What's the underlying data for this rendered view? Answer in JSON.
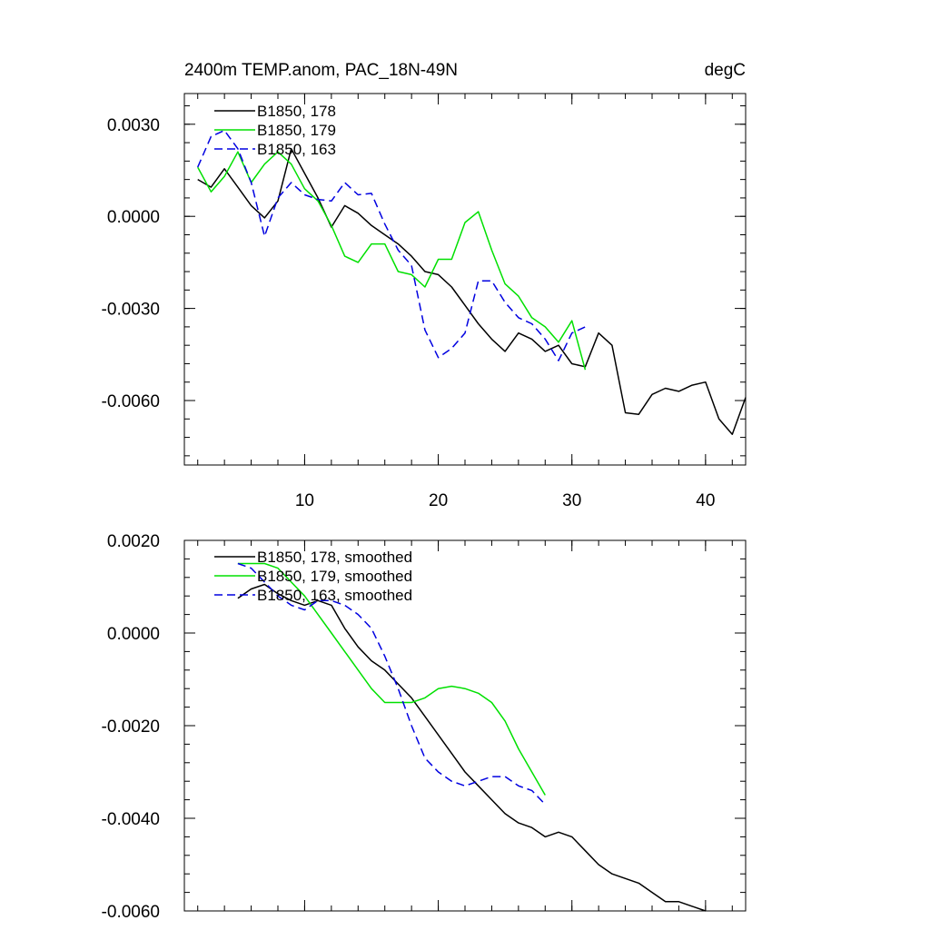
{
  "chart_data": [
    {
      "type": "line",
      "title": "2400m TEMP.anom, PAC_18N-49N",
      "units": "degC",
      "xlim": [
        1,
        43
      ],
      "ylim": [
        -0.0081,
        0.004
      ],
      "x_ticks": [
        10,
        20,
        30,
        40
      ],
      "x_tick_labels": [
        "10",
        "20",
        "30",
        "40"
      ],
      "y_ticks": [
        0.003,
        0.0,
        -0.003,
        -0.006
      ],
      "y_tick_labels": [
        "0.0030",
        "0.0000",
        "-0.0030",
        "-0.0060"
      ],
      "y_minor_step": 0.0006,
      "x_minor_step": 2,
      "legend_position": "top-left",
      "series": [
        {
          "name": "B1850, 178",
          "color": "#000000",
          "dash": "solid",
          "x": [
            2,
            3,
            4,
            5,
            6,
            7,
            8,
            9,
            10,
            11,
            12,
            13,
            14,
            15,
            16,
            17,
            18,
            19,
            20,
            21,
            22,
            23,
            24,
            25,
            26,
            27,
            28,
            29,
            30,
            31,
            32,
            33,
            34,
            35,
            36,
            37,
            38,
            39,
            40,
            41,
            42,
            43
          ],
          "values": [
            0.0012,
            0.00095,
            0.00155,
            0.00095,
            0.00035,
            -5e-05,
            0.0005,
            0.0022,
            0.0014,
            0.0006,
            -0.00035,
            0.00035,
            0.0001,
            -0.0003,
            -0.0006,
            -0.0009,
            -0.0013,
            -0.0018,
            -0.0019,
            -0.0023,
            -0.0029,
            -0.0035,
            -0.004,
            -0.0044,
            -0.0038,
            -0.004,
            -0.0044,
            -0.0042,
            -0.0048,
            -0.0049,
            -0.0038,
            -0.0042,
            -0.0064,
            -0.00645,
            -0.0058,
            -0.0056,
            -0.0057,
            -0.0055,
            -0.0054,
            -0.0066,
            -0.0071,
            -0.0059
          ]
        },
        {
          "name": "B1850, 179",
          "color": "#00e000",
          "dash": "solid",
          "x": [
            2,
            3,
            4,
            5,
            6,
            7,
            8,
            9,
            10,
            11,
            12,
            13,
            14,
            15,
            16,
            17,
            18,
            19,
            20,
            21,
            22,
            23,
            24,
            25,
            26,
            27,
            28,
            29,
            30,
            31
          ],
          "values": [
            0.0016,
            0.0008,
            0.0013,
            0.0021,
            0.0011,
            0.0017,
            0.0021,
            0.0017,
            0.0009,
            0.0005,
            -0.0003,
            -0.0013,
            -0.0015,
            -0.0009,
            -0.0009,
            -0.0018,
            -0.0019,
            -0.0023,
            -0.0014,
            -0.0014,
            -0.0002,
            0.00015,
            -0.0011,
            -0.0022,
            -0.0026,
            -0.0033,
            -0.0036,
            -0.0041,
            -0.0034,
            -0.005
          ]
        },
        {
          "name": "B1850, 163",
          "color": "#0000e0",
          "dash": "dashed",
          "x": [
            2,
            3,
            4,
            5,
            6,
            7,
            8,
            9,
            10,
            11,
            12,
            13,
            14,
            15,
            16,
            17,
            18,
            19,
            20,
            21,
            22,
            23,
            24,
            25,
            26,
            27,
            28,
            29,
            30,
            31
          ],
          "values": [
            0.0016,
            0.0026,
            0.0028,
            0.0022,
            0.0011,
            -0.00065,
            0.0006,
            0.0011,
            0.0007,
            0.00055,
            0.0005,
            0.0011,
            0.0007,
            0.00075,
            -0.00025,
            -0.0011,
            -0.0016,
            -0.0037,
            -0.0046,
            -0.0043,
            -0.0038,
            -0.0021,
            -0.0021,
            -0.0028,
            -0.0033,
            -0.0035,
            -0.004,
            -0.0047,
            -0.0038,
            -0.0036
          ]
        }
      ]
    },
    {
      "type": "line",
      "xlim": [
        1,
        43
      ],
      "ylim": [
        -0.006,
        0.002
      ],
      "x_ticks": [
        10,
        20,
        30,
        40
      ],
      "y_ticks": [
        0.002,
        0.0,
        -0.002,
        -0.004,
        -0.006
      ],
      "y_tick_labels": [
        "0.0020",
        "0.0000",
        "-0.0020",
        "-0.0040",
        "-0.0060"
      ],
      "y_minor_step": 0.0004,
      "x_minor_step": 2,
      "legend_position": "top-left",
      "series": [
        {
          "name": "B1850, 178, smoothed",
          "color": "#000000",
          "dash": "solid",
          "x": [
            5,
            6,
            7,
            8,
            9,
            10,
            11,
            12,
            13,
            14,
            15,
            16,
            17,
            18,
            19,
            20,
            21,
            22,
            23,
            24,
            25,
            26,
            27,
            28,
            29,
            30,
            31,
            32,
            33,
            34,
            35,
            36,
            37,
            38,
            39,
            40
          ],
          "values": [
            0.00075,
            0.00095,
            0.00105,
            0.00085,
            0.0007,
            0.0006,
            0.0007,
            0.0006,
            0.0001,
            -0.0003,
            -0.0006,
            -0.0008,
            -0.0011,
            -0.0014,
            -0.0018,
            -0.0022,
            -0.0026,
            -0.003,
            -0.0033,
            -0.0036,
            -0.0039,
            -0.0041,
            -0.0042,
            -0.0044,
            -0.0043,
            -0.0044,
            -0.0047,
            -0.005,
            -0.0052,
            -0.0053,
            -0.0054,
            -0.0056,
            -0.0058,
            -0.0058,
            -0.0059,
            -0.006
          ]
        },
        {
          "name": "B1850, 179, smoothed",
          "color": "#00e000",
          "dash": "solid",
          "x": [
            5,
            6,
            7,
            8,
            9,
            10,
            11,
            12,
            13,
            14,
            15,
            16,
            17,
            18,
            19,
            20,
            21,
            22,
            23,
            24,
            25,
            26,
            27,
            28
          ],
          "values": [
            0.0015,
            0.0015,
            0.0015,
            0.0014,
            0.0011,
            0.0008,
            0.0004,
            0.0,
            -0.0004,
            -0.0008,
            -0.0012,
            -0.0015,
            -0.0015,
            -0.0015,
            -0.0014,
            -0.0012,
            -0.00115,
            -0.0012,
            -0.0013,
            -0.0015,
            -0.0019,
            -0.0025,
            -0.003,
            -0.0035
          ]
        },
        {
          "name": "B1850, 163, smoothed",
          "color": "#0000e0",
          "dash": "dashed",
          "x": [
            5,
            6,
            7,
            8,
            9,
            10,
            11,
            12,
            13,
            14,
            15,
            16,
            17,
            18,
            19,
            20,
            21,
            22,
            23,
            24,
            25,
            26,
            27,
            28
          ],
          "values": [
            0.0015,
            0.0014,
            0.0011,
            0.0008,
            0.0006,
            0.0005,
            0.0007,
            0.0007,
            0.0006,
            0.0004,
            0.0001,
            -0.0005,
            -0.0012,
            -0.002,
            -0.0027,
            -0.003,
            -0.0032,
            -0.0033,
            -0.0032,
            -0.0031,
            -0.0031,
            -0.0033,
            -0.0034,
            -0.0037
          ]
        }
      ]
    }
  ]
}
